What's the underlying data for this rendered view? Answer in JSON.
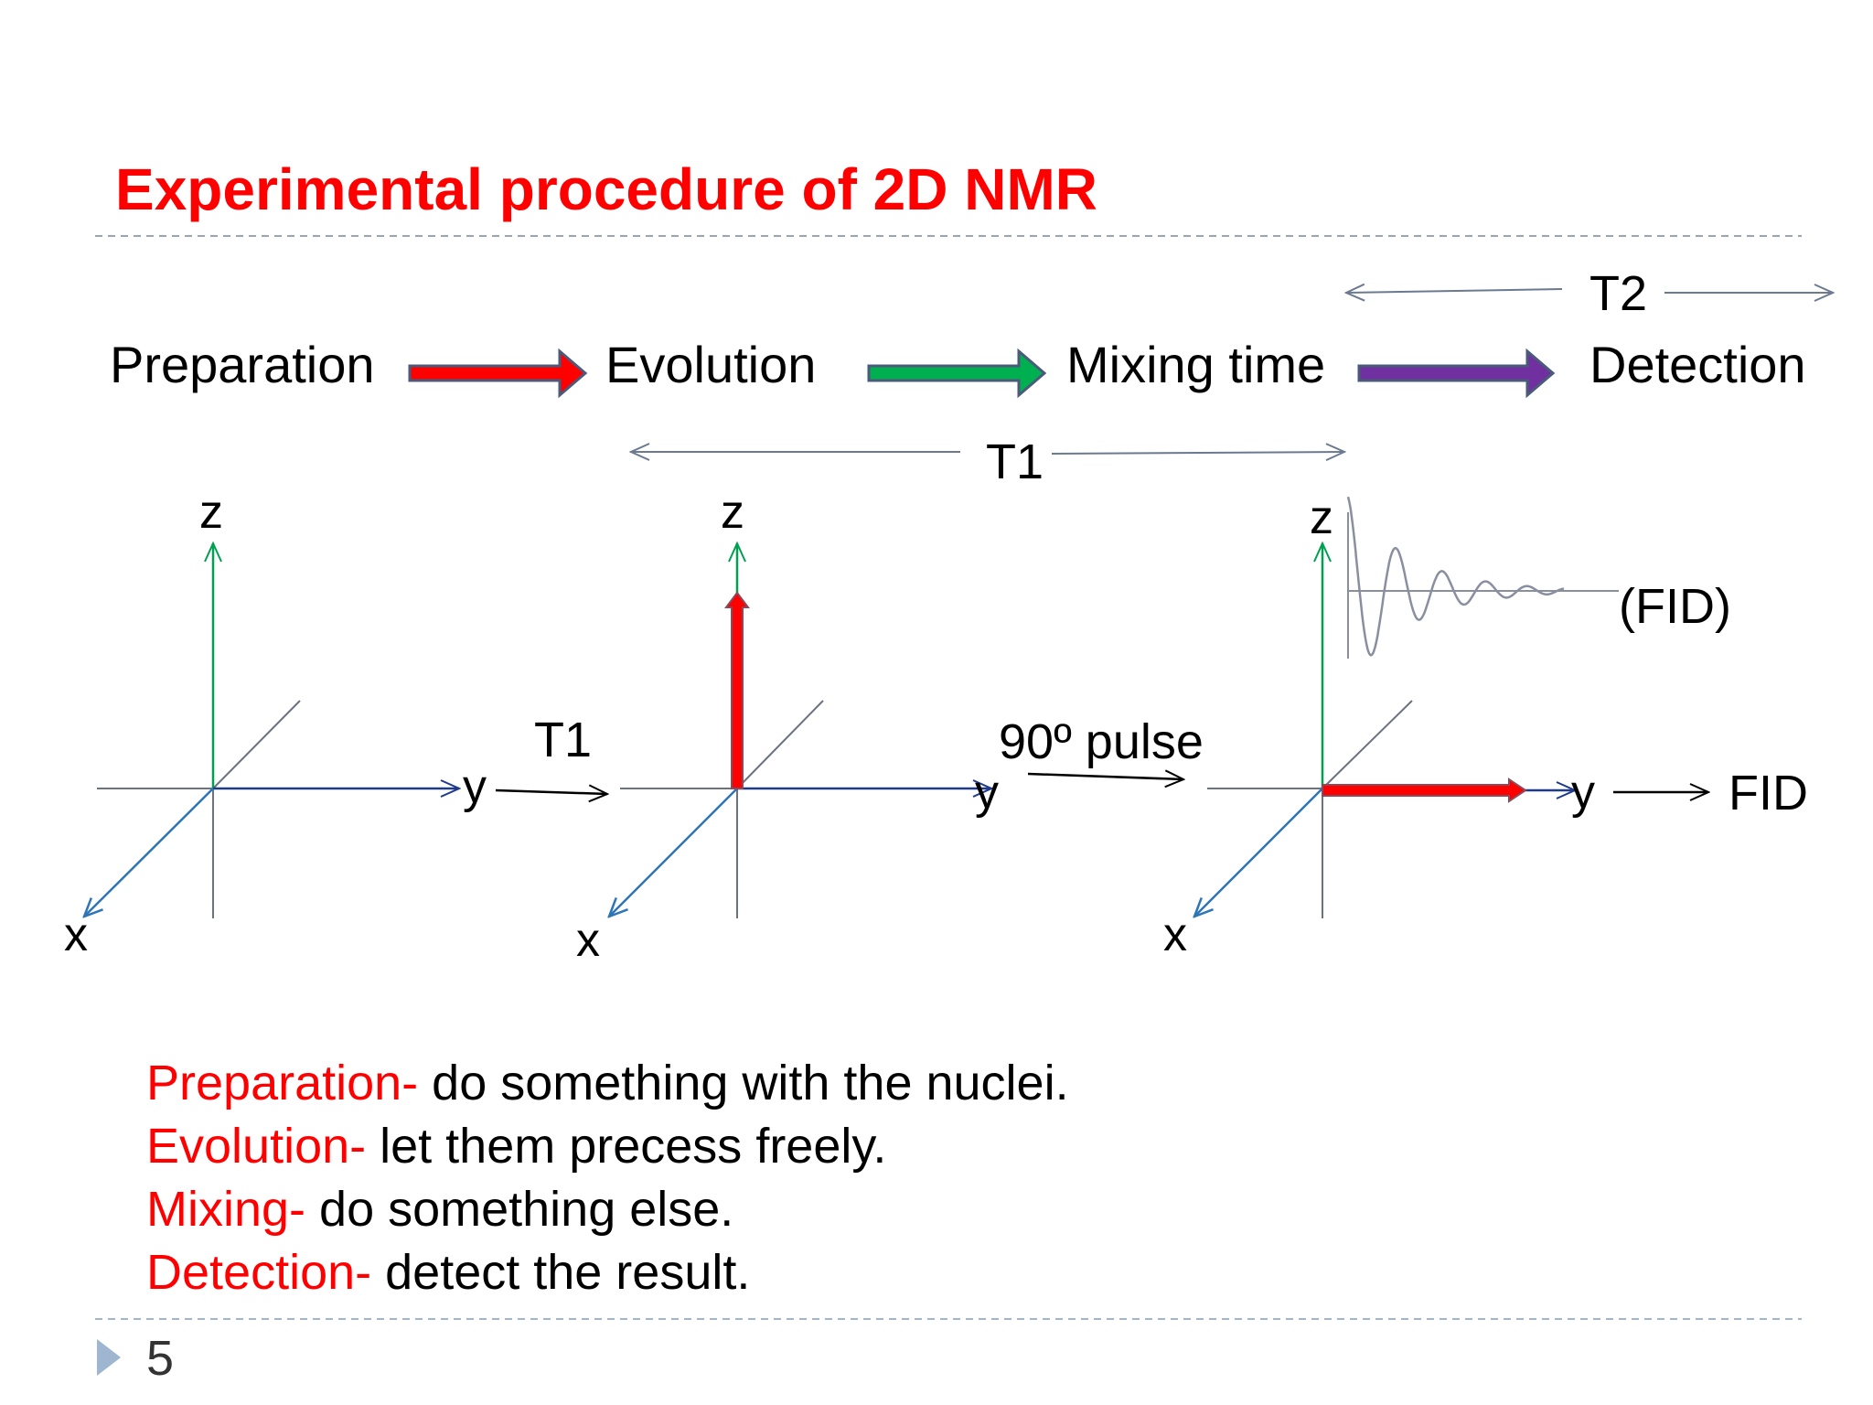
{
  "slide": {
    "title": "Experimental procedure of 2D NMR",
    "page_number": "5"
  },
  "stages": [
    "Preparation",
    "Evolution",
    "Mixing time",
    "Detection"
  ],
  "stage_arrow_colors": [
    "#ff0000",
    "#00b050",
    "#7030a0"
  ],
  "intervals": {
    "t1": "T1",
    "t2": "T2"
  },
  "axes": {
    "z": "z",
    "y": "y",
    "x": "x"
  },
  "transitions": {
    "first": "T1",
    "second": "90º pulse",
    "third": "FID"
  },
  "fid_label": "(FID)",
  "legend": [
    {
      "term": "Preparation-",
      "text": " do something with the nuclei."
    },
    {
      "term": "Evolution-",
      "text": " let them precess freely."
    },
    {
      "term": "Mixing-",
      "text": " do something else."
    },
    {
      "term": "Detection-",
      "text": " detect the result."
    }
  ],
  "colors": {
    "title": "#ff0000",
    "z_axis": "#00a050",
    "y_axis": "#1f3a8a",
    "x_axis": "#2e75b6",
    "vector": "#ff0000"
  }
}
